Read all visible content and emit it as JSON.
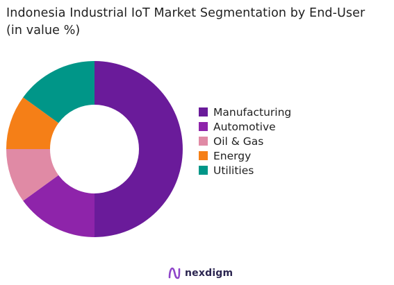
{
  "title_line1": "Indonesia Industrial IoT Market Segmentation by End-User",
  "title_line2": "(in value %)",
  "chart_data": {
    "type": "pie",
    "donut": true,
    "title": "Indonesia Industrial IoT Market Segmentation by End-User (in value %)",
    "categories": [
      "Manufacturing",
      "Automotive",
      "Oil & Gas",
      "Energy",
      "Utilities"
    ],
    "values": [
      50,
      15,
      10,
      10,
      15
    ],
    "colors": [
      "#6a1b9a",
      "#8e24aa",
      "#e08aa5",
      "#f57f17",
      "#009688"
    ],
    "legend_position": "right"
  },
  "brand": {
    "name": "nexdigm",
    "color": "#2b2550"
  }
}
